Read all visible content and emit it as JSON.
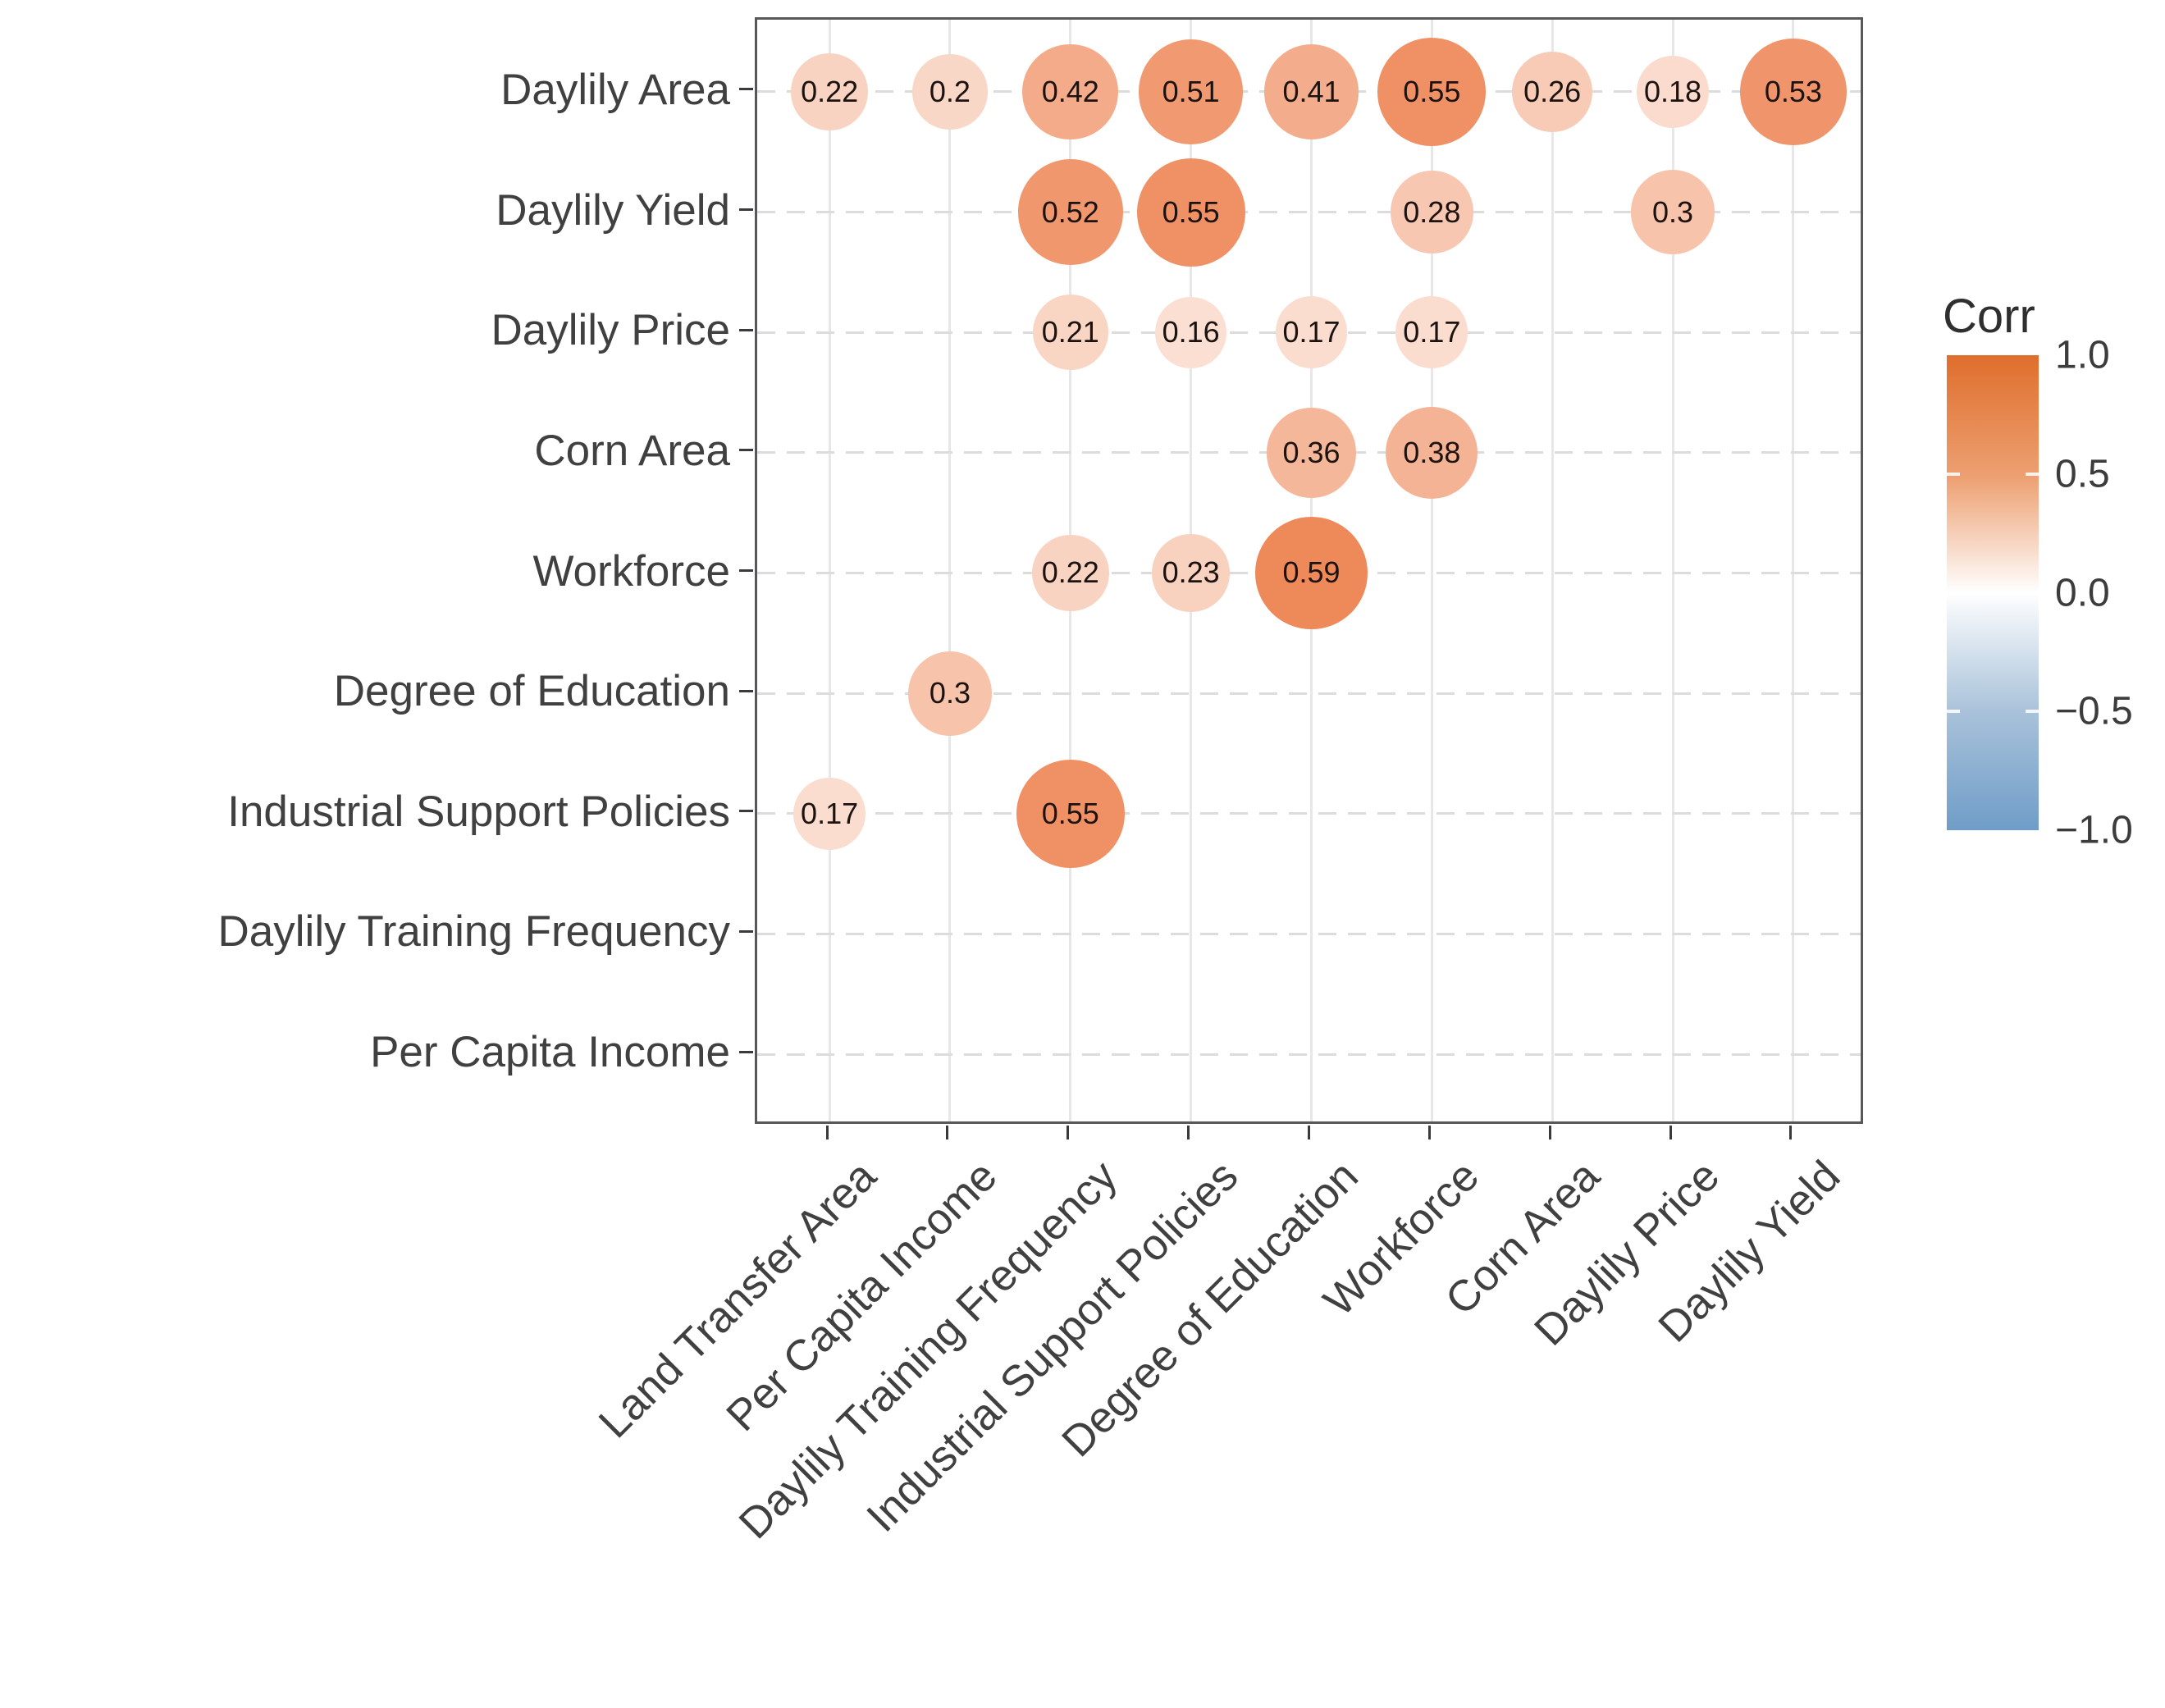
{
  "chart_data": {
    "type": "heatmap",
    "subtype": "correlation-bubble-matrix",
    "title": "",
    "rows": [
      "Daylily Area",
      "Daylily Yield",
      "Daylily Price",
      "Corn Area",
      "Workforce",
      "Degree of Education",
      "Industrial Support Policies",
      "Daylily Training Frequency",
      "Per Capita Income"
    ],
    "columns": [
      "Land Transfer Area",
      "Per Capita Income",
      "Daylily Training Frequency",
      "Industrial Support Policies",
      "Degree of Education",
      "Workforce",
      "Corn Area",
      "Daylily Price",
      "Daylily Yield"
    ],
    "cells": [
      {
        "row": "Daylily Area",
        "col": "Land Transfer Area",
        "value": 0.22,
        "label": "0.22"
      },
      {
        "row": "Daylily Area",
        "col": "Per Capita Income",
        "value": 0.2,
        "label": "0.2"
      },
      {
        "row": "Daylily Area",
        "col": "Daylily Training Frequency",
        "value": 0.42,
        "label": "0.42"
      },
      {
        "row": "Daylily Area",
        "col": "Industrial Support Policies",
        "value": 0.51,
        "label": "0.51"
      },
      {
        "row": "Daylily Area",
        "col": "Degree of Education",
        "value": 0.41,
        "label": "0.41"
      },
      {
        "row": "Daylily Area",
        "col": "Workforce",
        "value": 0.55,
        "label": "0.55"
      },
      {
        "row": "Daylily Area",
        "col": "Corn Area",
        "value": 0.26,
        "label": "0.26"
      },
      {
        "row": "Daylily Area",
        "col": "Daylily Price",
        "value": 0.18,
        "label": "0.18"
      },
      {
        "row": "Daylily Area",
        "col": "Daylily Yield",
        "value": 0.53,
        "label": "0.53"
      },
      {
        "row": "Daylily Yield",
        "col": "Daylily Training Frequency",
        "value": 0.52,
        "label": "0.52"
      },
      {
        "row": "Daylily Yield",
        "col": "Industrial Support Policies",
        "value": 0.55,
        "label": "0.55"
      },
      {
        "row": "Daylily Yield",
        "col": "Workforce",
        "value": 0.28,
        "label": "0.28"
      },
      {
        "row": "Daylily Yield",
        "col": "Daylily Price",
        "value": 0.3,
        "label": "0.3"
      },
      {
        "row": "Daylily Price",
        "col": "Daylily Training Frequency",
        "value": 0.21,
        "label": "0.21"
      },
      {
        "row": "Daylily Price",
        "col": "Industrial Support Policies",
        "value": 0.16,
        "label": "0.16"
      },
      {
        "row": "Daylily Price",
        "col": "Degree of Education",
        "value": 0.17,
        "label": "0.17"
      },
      {
        "row": "Daylily Price",
        "col": "Workforce",
        "value": 0.17,
        "label": "0.17"
      },
      {
        "row": "Corn Area",
        "col": "Degree of Education",
        "value": 0.36,
        "label": "0.36"
      },
      {
        "row": "Corn Area",
        "col": "Workforce",
        "value": 0.38,
        "label": "0.38"
      },
      {
        "row": "Workforce",
        "col": "Daylily Training Frequency",
        "value": 0.22,
        "label": "0.22"
      },
      {
        "row": "Workforce",
        "col": "Industrial Support Policies",
        "value": 0.23,
        "label": "0.23"
      },
      {
        "row": "Workforce",
        "col": "Degree of Education",
        "value": 0.59,
        "label": "0.59"
      },
      {
        "row": "Degree of Education",
        "col": "Per Capita Income",
        "value": 0.3,
        "label": "0.3"
      },
      {
        "row": "Industrial Support Policies",
        "col": "Land Transfer Area",
        "value": 0.17,
        "label": "0.17"
      },
      {
        "row": "Industrial Support Policies",
        "col": "Daylily Training Frequency",
        "value": 0.55,
        "label": "0.55"
      }
    ],
    "legend": {
      "title": "Corr",
      "tick_labels": [
        "1.0",
        "0.5",
        "0.0",
        "−0.5",
        "−1.0"
      ],
      "tick_values": [
        1.0,
        0.5,
        0.0,
        -0.5,
        -1.0
      ],
      "range": [
        -1.0,
        1.0
      ],
      "high_color": "#df6e2c",
      "mid_color": "#ffffff",
      "low_color": "#6f9dc8",
      "position": "right"
    },
    "layout_hints": {
      "grid": "on",
      "horizontal_gridlines": "dashed",
      "vertical_gridlines": "solid",
      "x_tick_rotation_deg": 45,
      "bubble_size_encodes": "absolute correlation",
      "bubble_color_encodes": "correlation sign and magnitude"
    }
  }
}
